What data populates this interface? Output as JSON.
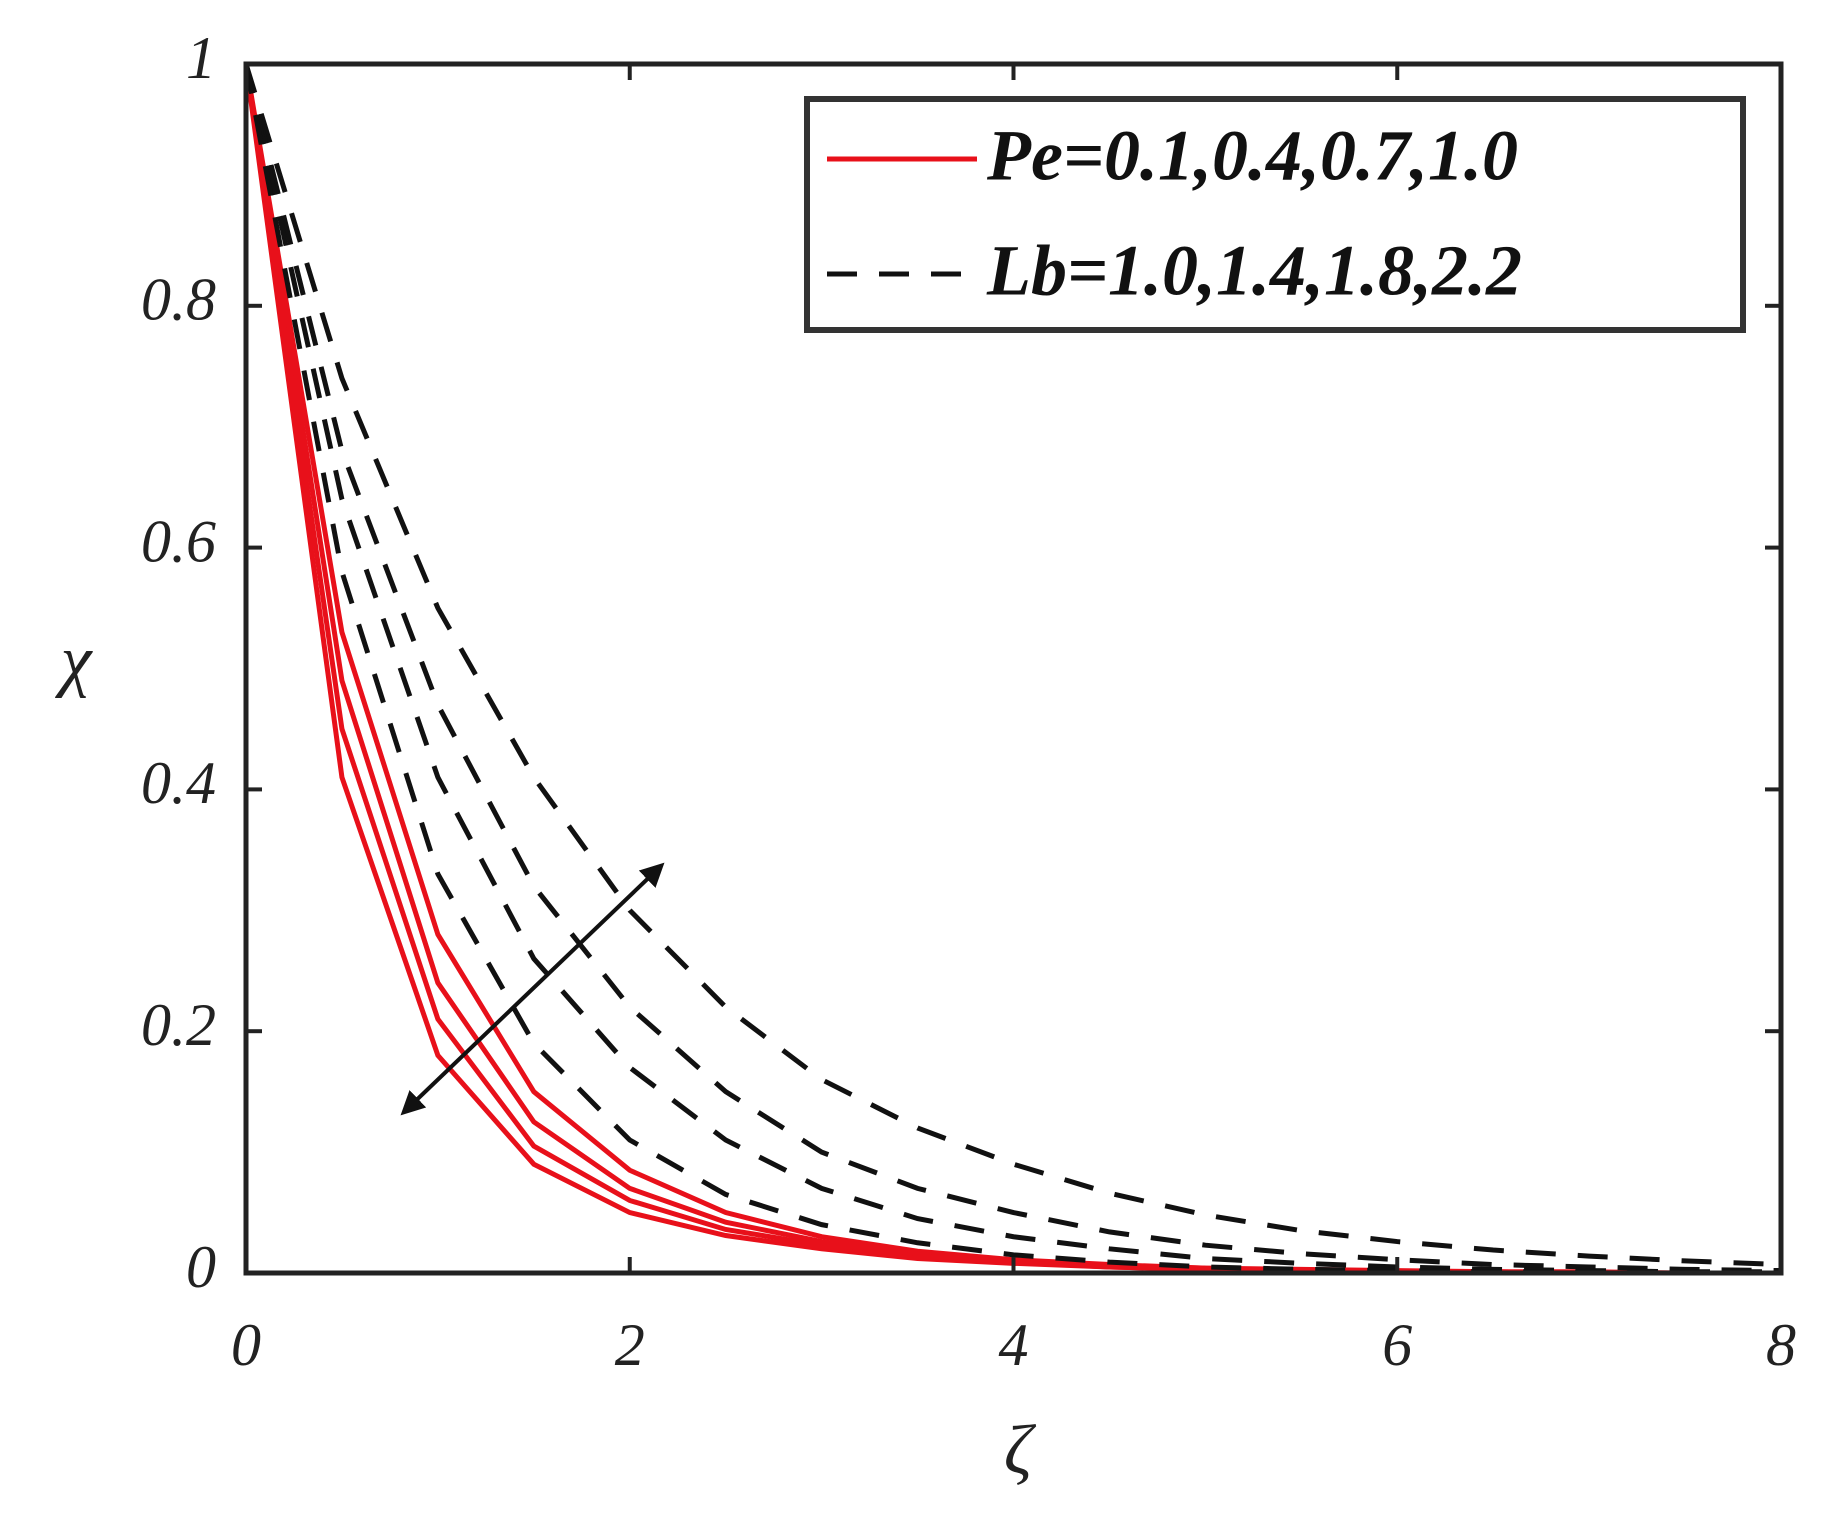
{
  "chart_data": {
    "type": "line",
    "x_label": "ζ",
    "y_label": "χ",
    "x": [
      0,
      0.5,
      1,
      1.5,
      2,
      2.5,
      3,
      3.5,
      4,
      4.5,
      5,
      5.5,
      6,
      6.5,
      7,
      7.5,
      8
    ],
    "xlim": [
      0,
      8
    ],
    "xticks": [
      0,
      2,
      4,
      6,
      8
    ],
    "ylim": [
      0,
      1
    ],
    "yticks": [
      0,
      0.2,
      0.4,
      0.6,
      0.8,
      1
    ],
    "legend_position": "upper right",
    "series": [
      {
        "name": "Pe=0.1,0.4,0.7,1.0",
        "color": "#e8101a",
        "style": "solid",
        "values": [
          1,
          0.53,
          0.28,
          0.15,
          0.085,
          0.05,
          0.03,
          0.018,
          0.011,
          0.007,
          0.004,
          0.003,
          0.002,
          0.001,
          0.001,
          0,
          0
        ]
      },
      {
        "color": "#e8101a",
        "style": "solid",
        "values": [
          1,
          0.49,
          0.24,
          0.125,
          0.07,
          0.042,
          0.026,
          0.016,
          0.01,
          0.006,
          0.004,
          0.002,
          0.001,
          0.001,
          0,
          0,
          0
        ]
      },
      {
        "color": "#e8101a",
        "style": "solid",
        "values": [
          1,
          0.45,
          0.21,
          0.105,
          0.06,
          0.036,
          0.023,
          0.014,
          0.009,
          0.005,
          0.003,
          0.002,
          0.001,
          0.001,
          0,
          0,
          0
        ]
      },
      {
        "color": "#e8101a",
        "style": "solid",
        "values": [
          1,
          0.41,
          0.18,
          0.09,
          0.05,
          0.031,
          0.02,
          0.012,
          0.008,
          0.005,
          0.003,
          0.002,
          0.001,
          0,
          0,
          0,
          0
        ]
      },
      {
        "name": "Lb=1.0,1.4,1.8,2.2",
        "color": "#111111",
        "style": "dashed",
        "values": [
          1,
          0.74,
          0.55,
          0.41,
          0.3,
          0.22,
          0.16,
          0.12,
          0.09,
          0.066,
          0.048,
          0.035,
          0.026,
          0.019,
          0.014,
          0.01,
          0.007
        ]
      },
      {
        "color": "#111111",
        "style": "dashed",
        "values": [
          1,
          0.68,
          0.47,
          0.32,
          0.22,
          0.15,
          0.1,
          0.07,
          0.05,
          0.034,
          0.023,
          0.016,
          0.011,
          0.007,
          0.005,
          0.003,
          0.002
        ]
      },
      {
        "color": "#111111",
        "style": "dashed",
        "values": [
          1,
          0.64,
          0.41,
          0.26,
          0.17,
          0.11,
          0.07,
          0.045,
          0.03,
          0.02,
          0.012,
          0.008,
          0.005,
          0.003,
          0.002,
          0.001,
          0.001
        ]
      },
      {
        "color": "#111111",
        "style": "dashed",
        "values": [
          1,
          0.58,
          0.33,
          0.19,
          0.11,
          0.065,
          0.04,
          0.025,
          0.015,
          0.009,
          0.005,
          0.003,
          0.002,
          0.001,
          0.001,
          0,
          0
        ]
      }
    ]
  }
}
